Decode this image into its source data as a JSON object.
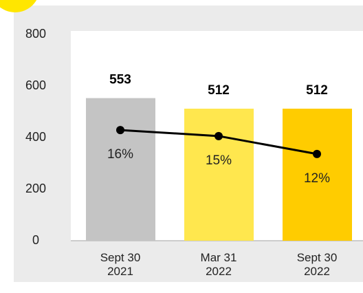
{
  "chart_data": {
    "type": "bar",
    "categories": [
      "Sept 30\n2021",
      "Mar 31\n2022",
      "Sept 30\n2022"
    ],
    "series": [
      {
        "values": [
          553,
          512,
          512
        ],
        "colors": [
          "#c4c4c4",
          "#ffe74e",
          "#ffcc00"
        ]
      },
      {
        "type": "line",
        "axis": "y2",
        "color": "#000000",
        "values": [
          16,
          15,
          12
        ],
        "value_labels": [
          "16%",
          "15%",
          "12%"
        ]
      }
    ],
    "ylim": [
      0,
      800
    ],
    "yticks": [
      0,
      200,
      400,
      600,
      800
    ],
    "y2lim": [
      -2.5,
      32
    ],
    "grid": false
  }
}
